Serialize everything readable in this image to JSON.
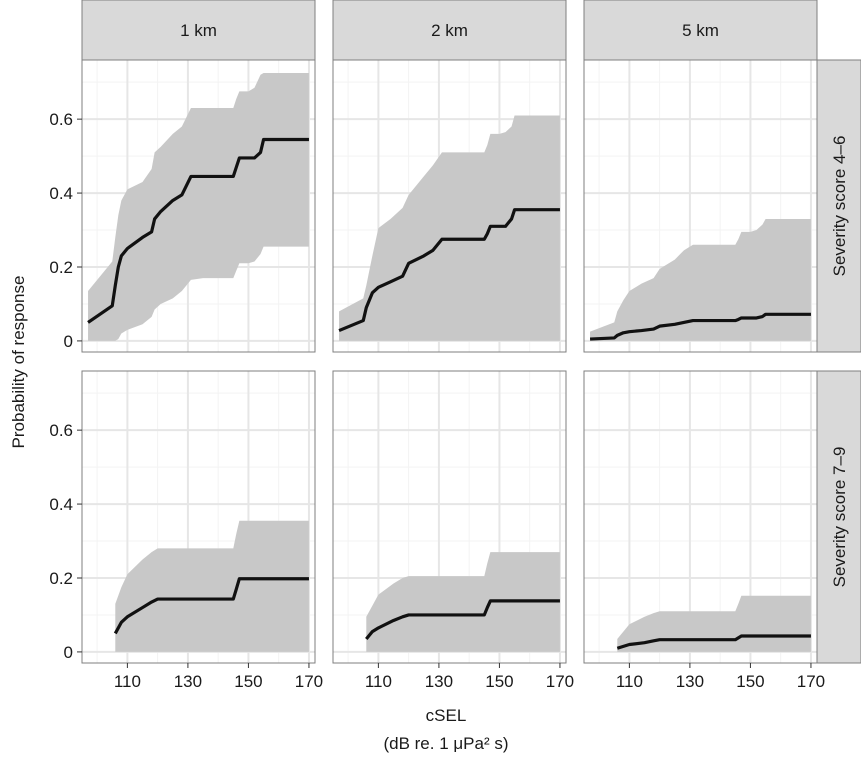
{
  "chart_data": {
    "type": "area",
    "facet_columns": [
      "1 km",
      "2 km",
      "5 km"
    ],
    "facet_rows": [
      "Severity score 4–6",
      "Severity score 7–9"
    ],
    "xlabel": "cSEL",
    "xlabel_units": "(dB re. 1 μPa² s)",
    "ylabel": "Probability of response",
    "xlim": [
      95,
      172
    ],
    "ylim": [
      -0.03,
      0.76
    ],
    "x_ticks": [
      110,
      130,
      150,
      170
    ],
    "y_ticks": [
      0,
      0.2,
      0.4,
      0.6
    ],
    "y_tick_labels": [
      "0",
      "0.2",
      "0.4",
      "0.6"
    ],
    "grid": true,
    "panels": [
      {
        "row": 0,
        "col": 0,
        "x": [
          97,
          105,
          106,
          107,
          108,
          110,
          115,
          118,
          119,
          121,
          125,
          128,
          131,
          135,
          140,
          145,
          146,
          147,
          148,
          150,
          152,
          154,
          155,
          160,
          165,
          170
        ],
        "mean": [
          0.05,
          0.095,
          0.15,
          0.2,
          0.23,
          0.25,
          0.28,
          0.295,
          0.33,
          0.35,
          0.38,
          0.395,
          0.445,
          0.445,
          0.445,
          0.445,
          0.47,
          0.495,
          0.495,
          0.495,
          0.495,
          0.51,
          0.545,
          0.545,
          0.545,
          0.545
        ],
        "lower": [
          0,
          0,
          0,
          0.005,
          0.02,
          0.03,
          0.045,
          0.065,
          0.085,
          0.1,
          0.115,
          0.135,
          0.165,
          0.17,
          0.17,
          0.17,
          0.19,
          0.21,
          0.21,
          0.21,
          0.215,
          0.235,
          0.255,
          0.255,
          0.255,
          0.255
        ],
        "upper": [
          0.135,
          0.215,
          0.28,
          0.34,
          0.38,
          0.41,
          0.43,
          0.465,
          0.51,
          0.525,
          0.56,
          0.58,
          0.63,
          0.63,
          0.63,
          0.63,
          0.655,
          0.675,
          0.675,
          0.675,
          0.685,
          0.72,
          0.725,
          0.725,
          0.725,
          0.725
        ]
      },
      {
        "row": 0,
        "col": 1,
        "x": [
          97,
          105,
          106,
          108,
          110,
          114,
          118,
          120,
          125,
          128,
          131,
          135,
          140,
          145,
          146,
          147,
          148,
          150,
          152,
          154,
          155,
          160,
          165,
          170
        ],
        "mean": [
          0.028,
          0.055,
          0.09,
          0.13,
          0.145,
          0.16,
          0.175,
          0.21,
          0.23,
          0.245,
          0.275,
          0.275,
          0.275,
          0.275,
          0.29,
          0.31,
          0.31,
          0.31,
          0.31,
          0.33,
          0.355,
          0.355,
          0.355,
          0.355
        ],
        "lower": [
          0,
          0,
          0,
          0,
          0,
          0,
          0,
          0,
          0,
          0,
          0,
          0,
          0,
          0,
          0,
          0,
          0,
          0,
          0,
          0,
          0,
          0,
          0,
          0
        ],
        "upper": [
          0.08,
          0.115,
          0.15,
          0.23,
          0.305,
          0.33,
          0.36,
          0.395,
          0.445,
          0.475,
          0.51,
          0.51,
          0.51,
          0.51,
          0.53,
          0.56,
          0.56,
          0.56,
          0.565,
          0.58,
          0.61,
          0.61,
          0.61,
          0.61
        ]
      },
      {
        "row": 0,
        "col": 2,
        "x": [
          97,
          105,
          106,
          108,
          110,
          114,
          118,
          120,
          125,
          128,
          131,
          135,
          140,
          145,
          146,
          147,
          148,
          150,
          152,
          154,
          155,
          160,
          165,
          170
        ],
        "mean": [
          0.005,
          0.008,
          0.015,
          0.022,
          0.025,
          0.028,
          0.032,
          0.04,
          0.045,
          0.05,
          0.055,
          0.055,
          0.055,
          0.055,
          0.058,
          0.062,
          0.062,
          0.062,
          0.062,
          0.066,
          0.072,
          0.072,
          0.072,
          0.072
        ],
        "lower": [
          0,
          0,
          0,
          0,
          0,
          0,
          0,
          0,
          0,
          0,
          0,
          0,
          0,
          0,
          0,
          0,
          0,
          0,
          0,
          0,
          0,
          0,
          0,
          0
        ],
        "upper": [
          0.025,
          0.05,
          0.08,
          0.11,
          0.135,
          0.155,
          0.17,
          0.195,
          0.22,
          0.245,
          0.26,
          0.26,
          0.26,
          0.26,
          0.275,
          0.295,
          0.295,
          0.295,
          0.3,
          0.315,
          0.33,
          0.33,
          0.33,
          0.33
        ]
      },
      {
        "row": 1,
        "col": 0,
        "x": [
          106,
          108,
          110,
          115,
          118,
          120,
          125,
          130,
          135,
          140,
          145,
          146,
          147,
          148,
          150,
          155,
          160,
          165,
          170
        ],
        "mean": [
          0.05,
          0.08,
          0.095,
          0.12,
          0.135,
          0.143,
          0.143,
          0.143,
          0.143,
          0.143,
          0.143,
          0.17,
          0.198,
          0.198,
          0.198,
          0.198,
          0.198,
          0.198,
          0.198
        ],
        "lower": [
          0,
          0,
          0,
          0,
          0,
          0,
          0,
          0,
          0,
          0,
          0,
          0,
          0,
          0,
          0,
          0,
          0,
          0,
          0
        ],
        "upper": [
          0.13,
          0.175,
          0.21,
          0.25,
          0.27,
          0.28,
          0.28,
          0.28,
          0.28,
          0.28,
          0.28,
          0.32,
          0.355,
          0.355,
          0.355,
          0.355,
          0.355,
          0.355,
          0.355
        ]
      },
      {
        "row": 1,
        "col": 1,
        "x": [
          106,
          108,
          110,
          115,
          118,
          120,
          125,
          130,
          135,
          140,
          145,
          146,
          147,
          148,
          150,
          155,
          160,
          165,
          170
        ],
        "mean": [
          0.035,
          0.055,
          0.065,
          0.085,
          0.095,
          0.1,
          0.1,
          0.1,
          0.1,
          0.1,
          0.1,
          0.12,
          0.138,
          0.138,
          0.138,
          0.138,
          0.138,
          0.138,
          0.138
        ],
        "lower": [
          0,
          0,
          0,
          0,
          0,
          0,
          0,
          0,
          0,
          0,
          0,
          0,
          0,
          0,
          0,
          0,
          0,
          0,
          0
        ],
        "upper": [
          0.095,
          0.125,
          0.155,
          0.185,
          0.2,
          0.205,
          0.205,
          0.205,
          0.205,
          0.205,
          0.205,
          0.24,
          0.27,
          0.27,
          0.27,
          0.27,
          0.27,
          0.27,
          0.27
        ]
      },
      {
        "row": 1,
        "col": 2,
        "x": [
          106,
          108,
          110,
          115,
          118,
          120,
          125,
          130,
          135,
          140,
          145,
          146,
          147,
          148,
          150,
          155,
          160,
          165,
          170
        ],
        "mean": [
          0.01,
          0.015,
          0.02,
          0.025,
          0.03,
          0.033,
          0.033,
          0.033,
          0.033,
          0.033,
          0.033,
          0.038,
          0.043,
          0.043,
          0.043,
          0.043,
          0.043,
          0.043,
          0.043
        ],
        "lower": [
          0,
          0,
          0,
          0,
          0,
          0,
          0,
          0,
          0,
          0,
          0,
          0,
          0,
          0,
          0,
          0,
          0,
          0,
          0
        ],
        "upper": [
          0.035,
          0.055,
          0.075,
          0.095,
          0.105,
          0.11,
          0.11,
          0.11,
          0.11,
          0.11,
          0.11,
          0.13,
          0.152,
          0.152,
          0.152,
          0.152,
          0.152,
          0.152,
          0.152
        ]
      }
    ],
    "colors": {
      "panel_background": "#ffffff",
      "panel_border": "#7f7f7f",
      "major_grid": "#e6e6e6",
      "minor_grid": "#f3f3f3",
      "ribbon": "#c8c8c8",
      "line": "#111111",
      "strip_fill": "#d9d9d9",
      "strip_border": "#7f7f7f",
      "text": "#1a1a1a"
    }
  }
}
